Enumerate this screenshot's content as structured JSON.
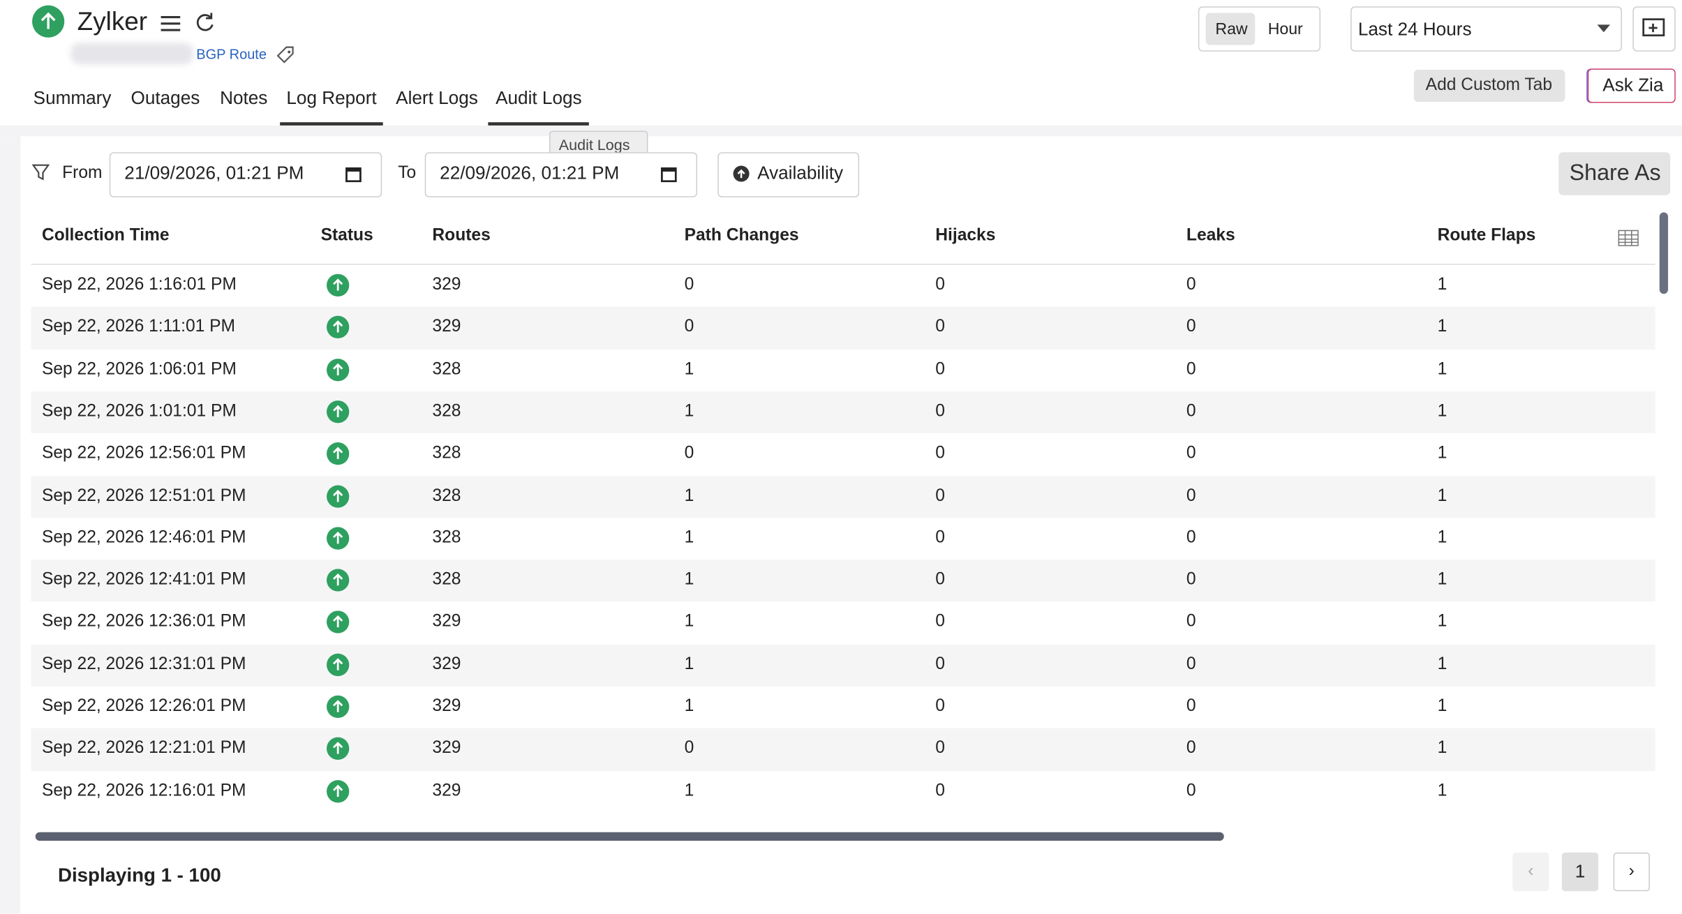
{
  "header": {
    "name": "Zylker",
    "subtitle": "BGP Route"
  },
  "view_toggle": [
    "Raw",
    "Hour"
  ],
  "period": "Last 24 Hours",
  "actions": {
    "custom_tab": "Add Custom Tab",
    "ask": "Ask Zia"
  },
  "tabs": [
    "Summary",
    "Outages",
    "Notes",
    "Log Report",
    "Alert Logs",
    "Audit Logs"
  ],
  "tooltip": "Audit Logs",
  "filter": {
    "from_label": "From",
    "from_value": "21/09/2026, 01:21 PM",
    "to_label": "To",
    "to_value": "22/09/2026, 01:21 PM",
    "availability": "Availability",
    "share": "Share As"
  },
  "table": {
    "columns": [
      "Collection Time",
      "Status",
      "Routes",
      "Path Changes",
      "Hijacks",
      "Leaks",
      "Route Flaps"
    ],
    "rows": [
      [
        "Sep 22, 2026 1:16:01 PM",
        329,
        0,
        0,
        0,
        1
      ],
      [
        "Sep 22, 2026 1:11:01 PM",
        329,
        0,
        0,
        0,
        1
      ],
      [
        "Sep 22, 2026 1:06:01 PM",
        328,
        1,
        0,
        0,
        1
      ],
      [
        "Sep 22, 2026 1:01:01 PM",
        328,
        1,
        0,
        0,
        1
      ],
      [
        "Sep 22, 2026 12:56:01 PM",
        328,
        0,
        0,
        0,
        1
      ],
      [
        "Sep 22, 2026 12:51:01 PM",
        328,
        1,
        0,
        0,
        1
      ],
      [
        "Sep 22, 2026 12:46:01 PM",
        328,
        1,
        0,
        0,
        1
      ],
      [
        "Sep 22, 2026 12:41:01 PM",
        328,
        1,
        0,
        0,
        1
      ],
      [
        "Sep 22, 2026 12:36:01 PM",
        329,
        1,
        0,
        0,
        1
      ],
      [
        "Sep 22, 2026 12:31:01 PM",
        329,
        1,
        0,
        0,
        1
      ],
      [
        "Sep 22, 2026 12:26:01 PM",
        329,
        1,
        0,
        0,
        1
      ],
      [
        "Sep 22, 2026 12:21:01 PM",
        329,
        0,
        0,
        0,
        1
      ],
      [
        "Sep 22, 2026 12:16:01 PM",
        329,
        1,
        0,
        0,
        1
      ]
    ]
  },
  "footer": {
    "displaying": "Displaying 1 - 100",
    "page": "1"
  }
}
